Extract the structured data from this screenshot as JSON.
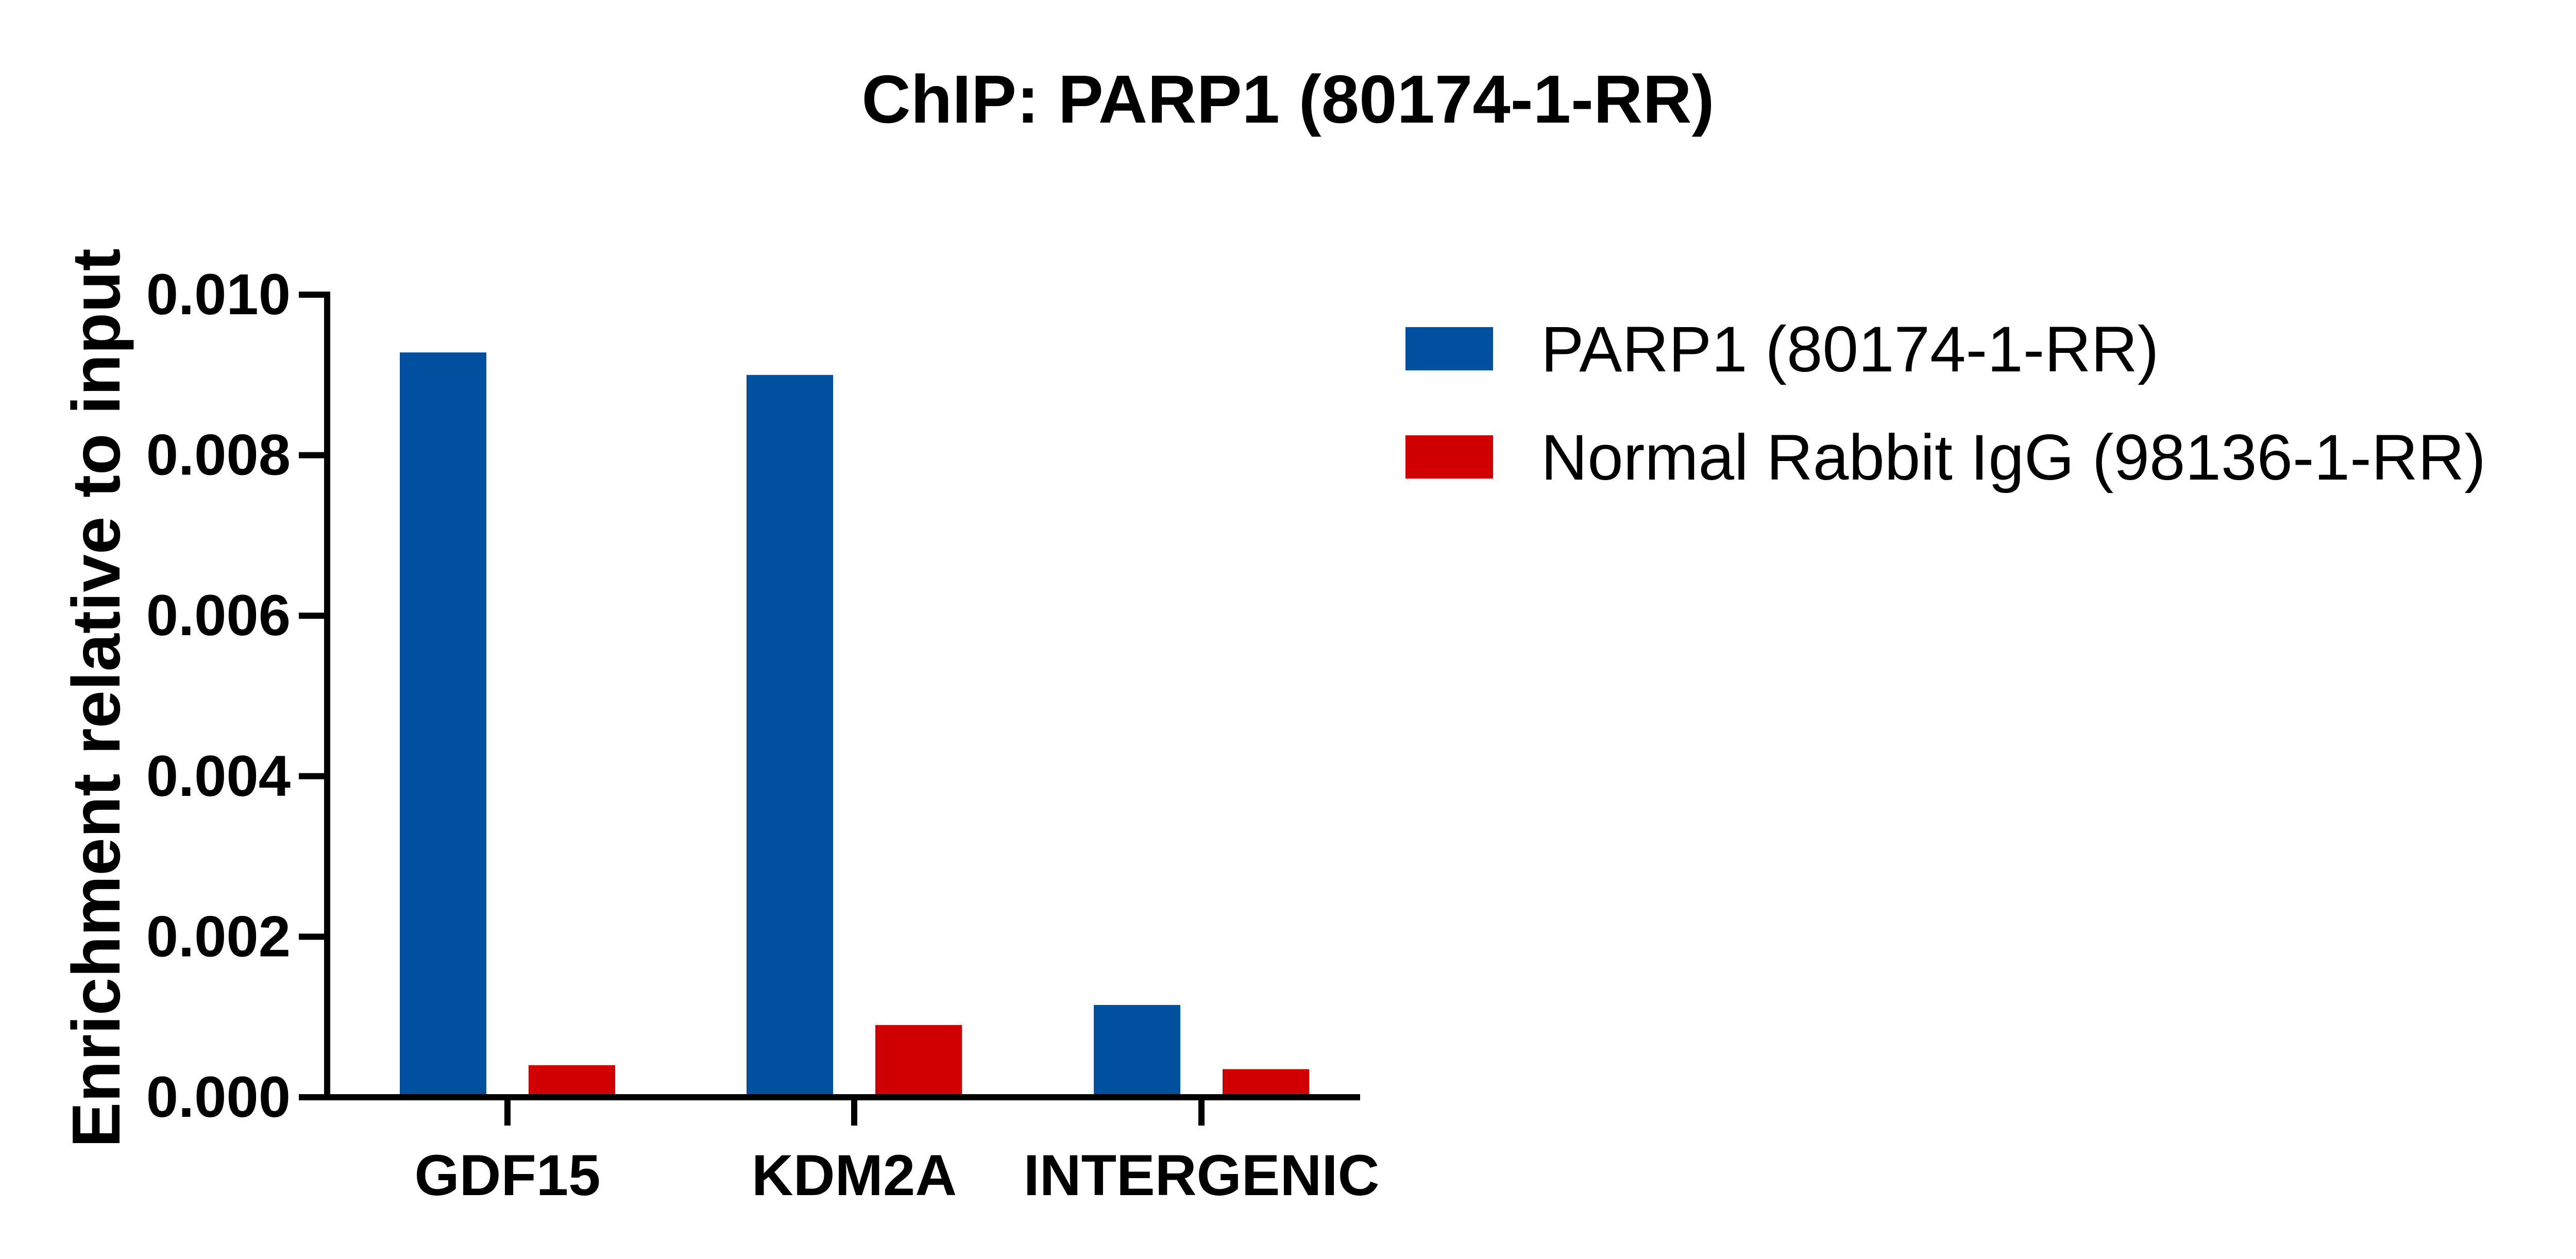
{
  "chart_data": {
    "type": "bar",
    "title": "ChIP: PARP1 (80174-1-RR)",
    "xlabel": "",
    "ylabel": "Enrichment relative to input",
    "categories": [
      "GDF15",
      "KDM2A",
      "INTERGENIC"
    ],
    "series": [
      {
        "name": "PARP1 (80174-1-RR)",
        "color": "#0050A0",
        "values": [
          0.00928,
          0.009,
          0.00115
        ]
      },
      {
        "name": "Normal Rabbit IgG (98136-1-RR)",
        "color": "#D00000",
        "values": [
          0.0004,
          0.0009,
          0.00035
        ]
      }
    ],
    "ylim": [
      0.0,
      0.01
    ],
    "yticks": [
      "0.000",
      "0.002",
      "0.004",
      "0.006",
      "0.008",
      "0.010"
    ],
    "grid": false,
    "legend_position": "top-right"
  }
}
